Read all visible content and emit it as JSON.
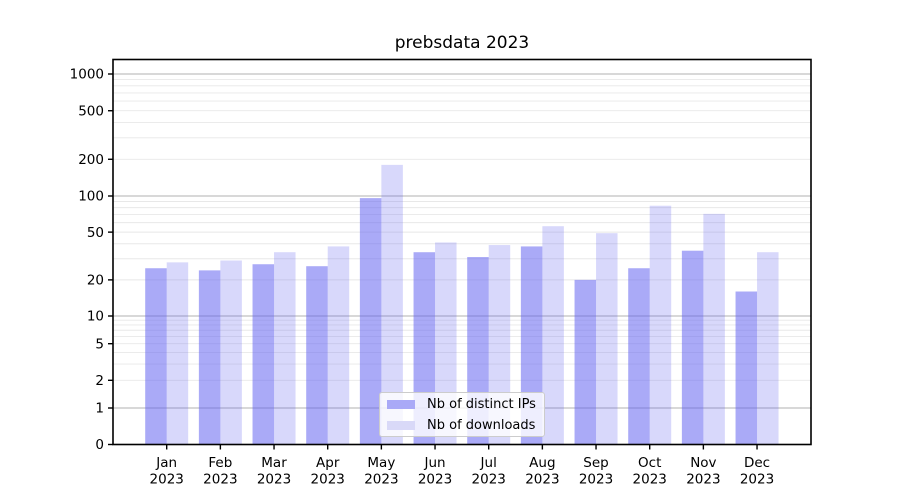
{
  "chart_data": {
    "type": "bar",
    "title": "prebsdata 2023",
    "categories": [
      "Jan",
      "Feb",
      "Mar",
      "Apr",
      "May",
      "Jun",
      "Jul",
      "Aug",
      "Sep",
      "Oct",
      "Nov",
      "Dec"
    ],
    "year_label": "2023",
    "series": [
      {
        "name": "Nb of distinct IPs",
        "values": [
          25,
          24,
          27,
          26,
          96,
          34,
          31,
          38,
          20,
          25,
          35,
          16
        ]
      },
      {
        "name": "Nb of downloads",
        "values": [
          28,
          29,
          34,
          38,
          180,
          41,
          39,
          56,
          49,
          83,
          71,
          34
        ]
      }
    ],
    "yscale": "symlog",
    "ytick_values": [
      0,
      1,
      2,
      5,
      10,
      20,
      50,
      100,
      200,
      500,
      1000
    ],
    "ytick_labels": [
      "0",
      "1",
      "2",
      "5",
      "10",
      "20",
      "50",
      "100",
      "200",
      "500",
      "1000"
    ],
    "ylim": [
      0,
      1320
    ],
    "grid": true,
    "legend_location": "lower center"
  },
  "colors": {
    "bar_distinct_ips": "rgba(100,100,240,0.55)",
    "bar_downloads": "rgba(100,100,240,0.25)",
    "legend_swatch_distinct_ips": "#a9a9f7",
    "legend_swatch_downloads": "#d9d9f8",
    "grid_major": "#b0b0b0",
    "grid_minor": "#e8e8e8",
    "axis": "#000000",
    "text": "#000000",
    "legend_border": "#cccccc"
  }
}
